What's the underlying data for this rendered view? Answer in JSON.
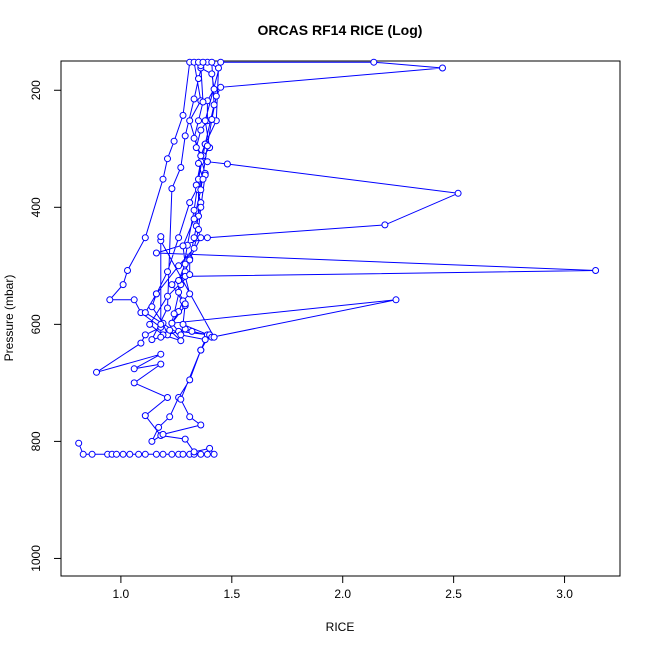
{
  "chart_data": {
    "type": "line",
    "title": "ORCAS RF14 RICE (Log)",
    "xlabel": "RICE",
    "ylabel": "Pressure (mbar)",
    "xlim": [
      0.73,
      3.25
    ],
    "ylim": [
      1030,
      150
    ],
    "y_inverted": true,
    "grid": false,
    "x_ticks": [
      1.0,
      1.5,
      2.0,
      2.5,
      3.0
    ],
    "x_tick_labels": [
      "1.0",
      "1.5",
      "2.0",
      "2.5",
      "3.0"
    ],
    "y_ticks": [
      200,
      400,
      600,
      800,
      1000
    ],
    "y_tick_labels": [
      "200",
      "400",
      "600",
      "800",
      "1000"
    ],
    "series": [
      {
        "color": "#0000ff",
        "marker": "open-circle",
        "points": [
          [
            0.81,
            803
          ],
          [
            0.83,
            822
          ],
          [
            0.87,
            822
          ],
          [
            0.94,
            822
          ],
          [
            0.96,
            822
          ],
          [
            0.98,
            822
          ],
          [
            1.01,
            822
          ],
          [
            1.04,
            822
          ],
          [
            1.08,
            822
          ],
          [
            1.11,
            822
          ],
          [
            1.16,
            822
          ],
          [
            1.19,
            822
          ],
          [
            1.23,
            822
          ],
          [
            1.26,
            822
          ],
          [
            1.28,
            822
          ],
          [
            1.31,
            822
          ],
          [
            1.33,
            822
          ],
          [
            1.36,
            822
          ],
          [
            1.39,
            822
          ],
          [
            1.42,
            822
          ],
          [
            1.4,
            812
          ],
          [
            1.33,
            818
          ],
          [
            1.29,
            796
          ],
          [
            1.18,
            790
          ],
          [
            1.11,
            756
          ],
          [
            1.21,
            725
          ],
          [
            1.06,
            700
          ],
          [
            1.18,
            668
          ],
          [
            1.06,
            676
          ],
          [
            1.18,
            651
          ],
          [
            0.89,
            682
          ],
          [
            1.09,
            632
          ],
          [
            1.11,
            618
          ],
          [
            1.18,
            605
          ],
          [
            1.09,
            580
          ],
          [
            1.06,
            558
          ],
          [
            0.95,
            558
          ],
          [
            1.01,
            532
          ],
          [
            1.03,
            508
          ],
          [
            1.11,
            452
          ],
          [
            1.19,
            352
          ],
          [
            1.21,
            317
          ],
          [
            1.24,
            287
          ],
          [
            1.28,
            243
          ],
          [
            1.31,
            152
          ],
          [
            1.33,
            152
          ],
          [
            1.36,
            218
          ],
          [
            1.31,
            252
          ],
          [
            1.38,
            342
          ],
          [
            1.31,
            392
          ],
          [
            1.26,
            452
          ],
          [
            1.21,
            510
          ],
          [
            1.16,
            548
          ],
          [
            1.14,
            570
          ],
          [
            1.19,
            598
          ],
          [
            1.21,
            618
          ],
          [
            1.29,
            608
          ],
          [
            1.32,
            612
          ],
          [
            1.39,
            618
          ],
          [
            1.36,
            644
          ],
          [
            1.31,
            695
          ],
          [
            1.26,
            725
          ],
          [
            1.22,
            758
          ],
          [
            1.17,
            776
          ],
          [
            1.14,
            800
          ],
          [
            1.19,
            788
          ],
          [
            1.36,
            772
          ],
          [
            1.31,
            758
          ],
          [
            1.27,
            728
          ],
          [
            1.36,
            644
          ],
          [
            1.4,
            618
          ],
          [
            1.26,
            612
          ],
          [
            1.23,
            598
          ],
          [
            1.29,
            568
          ],
          [
            1.23,
            532
          ],
          [
            1.29,
            510
          ],
          [
            1.31,
            488
          ],
          [
            1.36,
            452
          ],
          [
            1.34,
            432
          ],
          [
            1.36,
            392
          ],
          [
            1.34,
            362
          ],
          [
            1.36,
            322
          ],
          [
            1.37,
            312
          ],
          [
            1.34,
            298
          ],
          [
            1.36,
            268
          ],
          [
            1.39,
            252
          ],
          [
            1.39,
            218
          ],
          [
            1.42,
            198
          ],
          [
            1.41,
            172
          ],
          [
            1.36,
            162
          ],
          [
            1.39,
            152
          ],
          [
            1.44,
            162
          ],
          [
            1.43,
            252
          ],
          [
            1.38,
            292
          ],
          [
            1.36,
            312
          ],
          [
            1.39,
            322
          ],
          [
            1.48,
            326
          ],
          [
            2.52,
            376
          ],
          [
            2.19,
            430
          ],
          [
            1.39,
            452
          ],
          [
            1.16,
            478
          ],
          [
            3.14,
            508
          ],
          [
            1.29,
            518
          ],
          [
            1.31,
            548
          ],
          [
            1.28,
            560
          ],
          [
            1.26,
            578
          ],
          [
            1.23,
            598
          ],
          [
            2.24,
            558
          ],
          [
            1.41,
            622
          ],
          [
            1.38,
            626
          ],
          [
            1.27,
            618
          ],
          [
            1.11,
            580
          ],
          [
            1.16,
            548
          ],
          [
            1.26,
            500
          ],
          [
            1.33,
            470
          ],
          [
            1.35,
            438
          ],
          [
            1.36,
            400
          ],
          [
            1.38,
            345
          ],
          [
            1.36,
            312
          ],
          [
            1.33,
            282
          ],
          [
            1.35,
            252
          ],
          [
            1.37,
            220
          ],
          [
            1.36,
            158
          ],
          [
            1.35,
            152
          ],
          [
            1.41,
            152
          ],
          [
            1.42,
            225
          ],
          [
            1.38,
            292
          ],
          [
            1.35,
            352
          ],
          [
            1.33,
            405
          ],
          [
            1.3,
            465
          ],
          [
            1.27,
            532
          ],
          [
            1.24,
            582
          ],
          [
            1.22,
            610
          ],
          [
            1.27,
            628
          ],
          [
            1.19,
            618
          ],
          [
            1.13,
            600
          ],
          [
            1.21,
            552
          ],
          [
            1.31,
            515
          ],
          [
            1.31,
            490
          ],
          [
            1.33,
            452
          ],
          [
            1.35,
            415
          ],
          [
            1.35,
            370
          ],
          [
            1.37,
            352
          ],
          [
            1.35,
            325
          ],
          [
            1.4,
            298
          ],
          [
            1.38,
            252
          ],
          [
            1.45,
            152
          ],
          [
            2.14,
            152
          ],
          [
            2.45,
            162
          ],
          [
            1.45,
            195
          ],
          [
            1.43,
            210
          ],
          [
            1.41,
            250
          ],
          [
            1.39,
            295
          ],
          [
            1.36,
            370
          ],
          [
            1.33,
            420
          ],
          [
            1.28,
            466
          ],
          [
            1.29,
            497
          ],
          [
            1.26,
            525
          ],
          [
            1.26,
            545
          ],
          [
            1.29,
            565
          ],
          [
            1.28,
            600
          ],
          [
            1.42,
            622
          ],
          [
            1.18,
            457
          ],
          [
            1.18,
            450
          ],
          [
            1.18,
            600
          ],
          [
            1.18,
            622
          ],
          [
            1.14,
            626
          ],
          [
            1.21,
            572
          ],
          [
            1.23,
            368
          ],
          [
            1.27,
            332
          ],
          [
            1.29,
            278
          ],
          [
            1.33,
            215
          ],
          [
            1.35,
            180
          ],
          [
            1.37,
            152
          ]
        ]
      }
    ]
  }
}
